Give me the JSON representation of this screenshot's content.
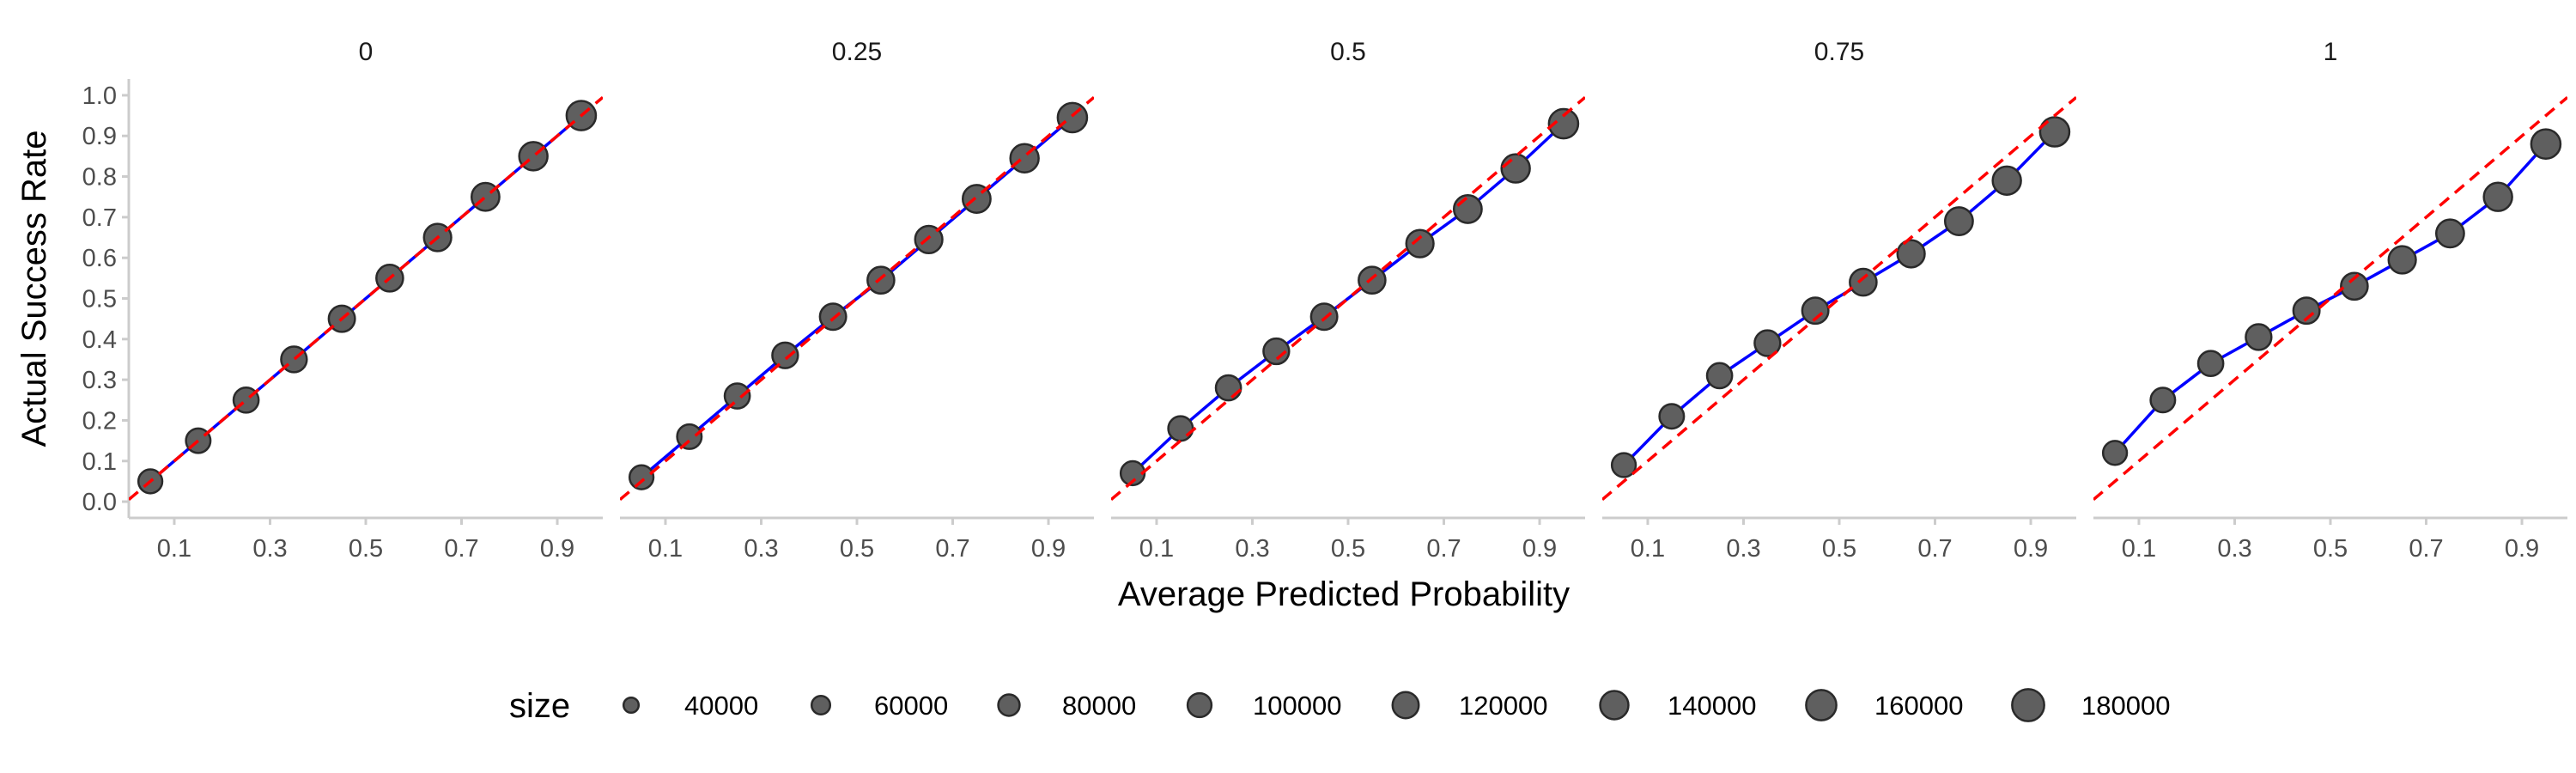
{
  "chart_data": {
    "type": "scatter",
    "facet_labels": [
      "0",
      "0.25",
      "0.5",
      "0.75",
      "1"
    ],
    "xlabel": "Average Predicted Probability",
    "ylabel": "Actual Success Rate",
    "xlim": [
      0.005,
      0.995
    ],
    "ylim": [
      -0.04,
      1.04
    ],
    "x_ticks": [
      0.1,
      0.3,
      0.5,
      0.7,
      0.9
    ],
    "x_tick_labels": [
      "0.1",
      "0.3",
      "0.5",
      "0.7",
      "0.9"
    ],
    "y_ticks": [
      0.0,
      0.1,
      0.2,
      0.3,
      0.4,
      0.5,
      0.6,
      0.7,
      0.8,
      0.9,
      1.0
    ],
    "y_tick_labels": [
      "0.0",
      "0.1",
      "0.2",
      "0.3",
      "0.4",
      "0.5",
      "0.6",
      "0.7",
      "0.8",
      "0.9",
      "1.0"
    ],
    "grid": false,
    "reference_line": {
      "slope": 1,
      "intercept": 0,
      "style": "dashed",
      "color": "#ff0000"
    },
    "fit_line_color": "#0000ff",
    "point_color": "#5f5f5f",
    "point_stroke": "#2a2a2a",
    "x": [
      0.05,
      0.15,
      0.25,
      0.35,
      0.45,
      0.55,
      0.65,
      0.75,
      0.85,
      0.95
    ],
    "sizes": [
      100000,
      105000,
      110000,
      115000,
      120000,
      125000,
      130000,
      135000,
      140000,
      150000
    ],
    "panels": [
      {
        "facet": "0",
        "y": [
          0.05,
          0.15,
          0.25,
          0.35,
          0.45,
          0.55,
          0.65,
          0.75,
          0.85,
          0.95
        ]
      },
      {
        "facet": "0.25",
        "y": [
          0.06,
          0.16,
          0.26,
          0.36,
          0.455,
          0.545,
          0.645,
          0.745,
          0.845,
          0.945
        ]
      },
      {
        "facet": "0.5",
        "y": [
          0.07,
          0.18,
          0.28,
          0.37,
          0.455,
          0.545,
          0.635,
          0.72,
          0.82,
          0.93
        ]
      },
      {
        "facet": "0.75",
        "y": [
          0.09,
          0.21,
          0.31,
          0.39,
          0.47,
          0.54,
          0.61,
          0.69,
          0.79,
          0.91
        ]
      },
      {
        "facet": "1",
        "y": [
          0.12,
          0.25,
          0.34,
          0.405,
          0.47,
          0.53,
          0.595,
          0.66,
          0.75,
          0.88
        ]
      }
    ],
    "legend": {
      "title": "size",
      "position": "bottom",
      "items": [
        {
          "label": "40000",
          "value": 40000
        },
        {
          "label": "60000",
          "value": 60000
        },
        {
          "label": "80000",
          "value": 80000
        },
        {
          "label": "100000",
          "value": 100000
        },
        {
          "label": "120000",
          "value": 120000
        },
        {
          "label": "140000",
          "value": 140000
        },
        {
          "label": "160000",
          "value": 160000
        },
        {
          "label": "180000",
          "value": 180000
        }
      ]
    }
  }
}
